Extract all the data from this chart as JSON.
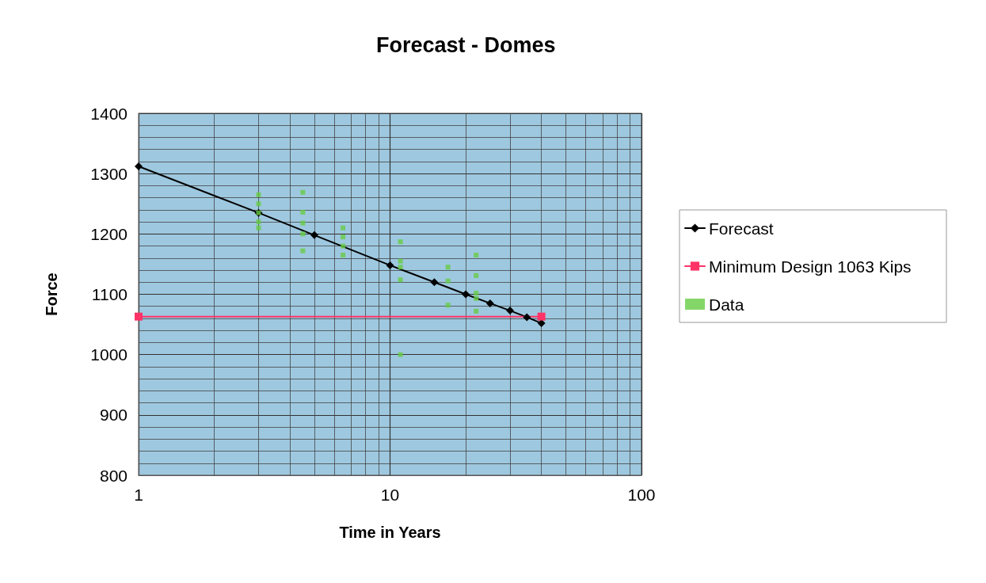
{
  "chart_data": {
    "type": "line",
    "title": "Forecast - Domes",
    "xlabel": "Time in Years",
    "ylabel": "Force",
    "xlim": [
      1,
      100
    ],
    "xticks": [
      1,
      10,
      100
    ],
    "ylim": [
      800,
      1400
    ],
    "yticks": [
      800,
      900,
      1000,
      1100,
      1200,
      1300,
      1400
    ],
    "log": "x",
    "grid": true,
    "legend": "right",
    "series": [
      {
        "name": "Forecast",
        "color": "#000000",
        "marker": "diamond",
        "x": [
          1,
          3,
          5,
          10,
          15,
          20,
          25,
          30,
          35,
          40
        ],
        "values": [
          1312,
          1235,
          1198,
          1148,
          1120,
          1100,
          1085,
          1073,
          1062,
          1052
        ]
      },
      {
        "name": "Minimum Design 1063 Kips",
        "color": "#ff3366",
        "marker": "square",
        "x": [
          1,
          40
        ],
        "values": [
          1063,
          1063
        ]
      },
      {
        "name": "Data",
        "type": "scatter",
        "color": "#66cc44",
        "marker": "square",
        "x": [
          3,
          3,
          3,
          3,
          3,
          4.5,
          4.5,
          4.5,
          4.5,
          4.5,
          6.5,
          6.5,
          6.5,
          6.5,
          11,
          11,
          11,
          11,
          11,
          17,
          17,
          17,
          22,
          22,
          22,
          22,
          22
        ],
        "values": [
          1265,
          1250,
          1235,
          1220,
          1210,
          1269,
          1236,
          1218,
          1200,
          1172,
          1210,
          1195,
          1180,
          1165,
          1187,
          1155,
          1145,
          1124,
          1000,
          1145,
          1122,
          1082,
          1165,
          1131,
          1102,
          1093,
          1072
        ]
      }
    ]
  }
}
